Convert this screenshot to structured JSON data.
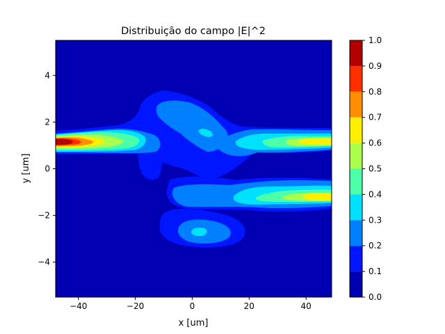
{
  "chart_data": {
    "type": "heatmap",
    "subtype": "filled-contour",
    "title": "Distribuição do campo |E|^2",
    "xlabel": "x [um]",
    "ylabel": "y [um]",
    "xlim": [
      -48,
      49
    ],
    "ylim": [
      -5.5,
      5.5
    ],
    "x_ticks": [
      -40,
      -20,
      0,
      20,
      40
    ],
    "x_tick_labels": [
      "−40",
      "−20",
      "0",
      "20",
      "40"
    ],
    "y_ticks": [
      4,
      2,
      0,
      -2,
      -4
    ],
    "y_tick_labels": [
      "4",
      "2",
      "0",
      "−2",
      "−4"
    ],
    "colormap": "jet",
    "grid": false,
    "colorbar": {
      "levels": [
        0.0,
        0.1,
        0.2,
        0.3,
        0.4,
        0.5,
        0.6,
        0.7,
        0.8,
        0.9,
        1.0
      ],
      "tick_labels": [
        "0.0",
        "0.1",
        "0.2",
        "0.3",
        "0.4",
        "0.5",
        "0.6",
        "0.7",
        "0.8",
        "0.9",
        "1.0"
      ],
      "colors": [
        "#0000b2",
        "#0016ff",
        "#0080ff",
        "#00e0ff",
        "#4cffa9",
        "#a9ff4c",
        "#ffef00",
        "#ff8f00",
        "#ff3000",
        "#b20000"
      ]
    },
    "features": [
      {
        "x": -47,
        "y": 1.15,
        "peak": 1.0
      },
      {
        "x": -25,
        "y": 1.15,
        "peak": 0.55
      },
      {
        "x": 45,
        "y": 1.15,
        "peak": 0.65
      },
      {
        "x": 45,
        "y": -1.15,
        "peak": 0.62
      },
      {
        "x": 4,
        "y": 1.5,
        "peak": 0.35
      },
      {
        "x": 3,
        "y": -2.7,
        "peak": 0.35
      }
    ]
  }
}
